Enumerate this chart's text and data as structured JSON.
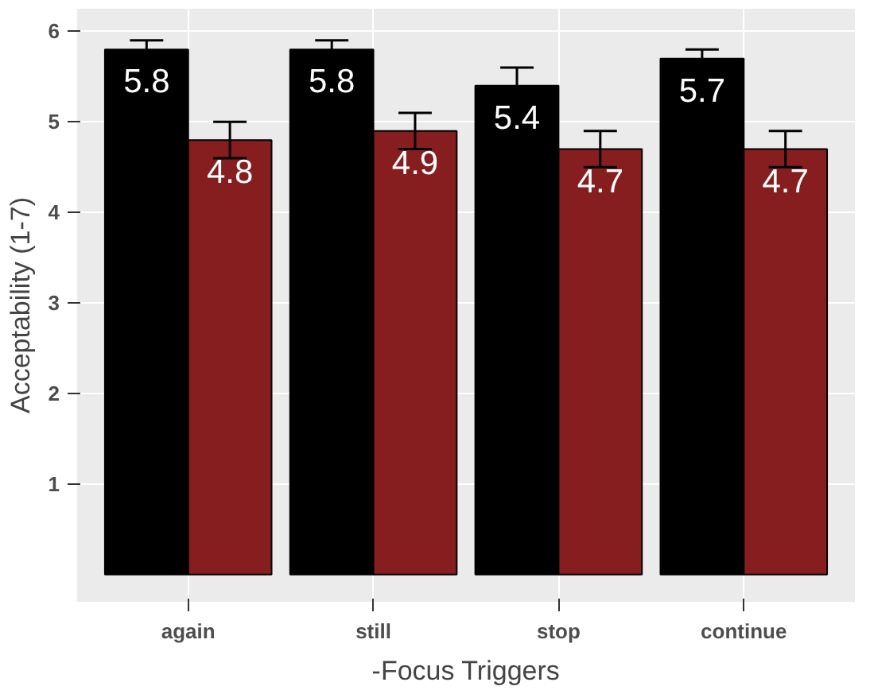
{
  "chart_data": {
    "type": "bar",
    "xlabel": "-Focus Triggers",
    "ylabel": "Acceptability (1-7)",
    "categories": [
      "again",
      "still",
      "stop",
      "continue"
    ],
    "series": [
      {
        "color": "#000000",
        "values": [
          5.8,
          5.8,
          5.4,
          5.7
        ],
        "errors": [
          0.1,
          0.1,
          0.2,
          0.1
        ]
      },
      {
        "color": "#861e1f",
        "values": [
          4.8,
          4.9,
          4.7,
          4.7
        ],
        "errors": [
          0.2,
          0.2,
          0.2,
          0.2
        ]
      }
    ],
    "ylim": [
      -0.3,
      6.25
    ],
    "yticks": [
      1,
      2,
      3,
      4,
      5,
      6
    ],
    "grid": true,
    "data_labels": true
  }
}
